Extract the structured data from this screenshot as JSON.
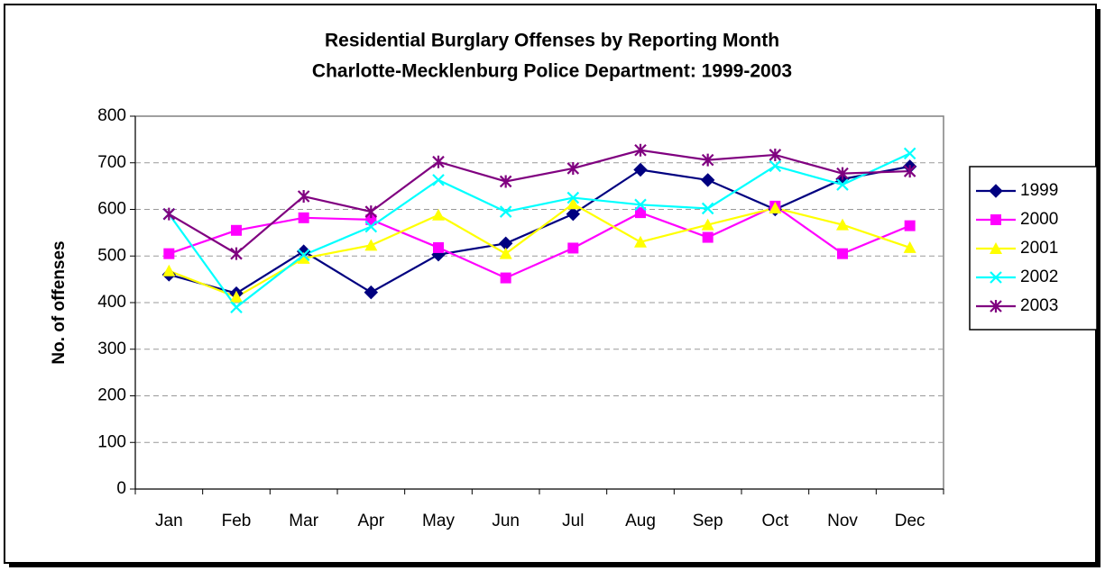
{
  "chart_data": {
    "type": "line",
    "title": [
      "Residential Burglary Offenses by Reporting Month",
      "Charlotte-Mecklenburg Police Department: 1999-2003"
    ],
    "ylabel": "No. of offenses",
    "categories": [
      "Jan",
      "Feb",
      "Mar",
      "Apr",
      "May",
      "Jun",
      "Jul",
      "Aug",
      "Sep",
      "Oct",
      "Nov",
      "Dec"
    ],
    "series": [
      {
        "name": "1999",
        "color": "#000080",
        "marker": "diamond",
        "values": [
          460,
          420,
          510,
          422,
          503,
          527,
          590,
          685,
          663,
          600,
          665,
          692
        ]
      },
      {
        "name": "2000",
        "color": "#ff00ff",
        "marker": "square",
        "values": [
          505,
          555,
          582,
          578,
          518,
          453,
          517,
          593,
          540,
          607,
          505,
          565
        ]
      },
      {
        "name": "2001",
        "color": "#ffff00",
        "marker": "triangle",
        "values": [
          468,
          412,
          495,
          523,
          588,
          505,
          612,
          530,
          567,
          603,
          567,
          518
        ]
      },
      {
        "name": "2002",
        "color": "#00ffff",
        "marker": "x",
        "values": [
          590,
          390,
          502,
          563,
          663,
          595,
          625,
          610,
          602,
          693,
          653,
          720
        ]
      },
      {
        "name": "2003",
        "color": "#800080",
        "marker": "star",
        "values": [
          590,
          505,
          628,
          595,
          702,
          660,
          688,
          727,
          706,
          717,
          677,
          682
        ]
      }
    ],
    "ylim": [
      0,
      800
    ],
    "yticks": [
      0,
      100,
      200,
      300,
      400,
      500,
      600,
      700,
      800
    ],
    "grid": true,
    "legend": "right"
  }
}
